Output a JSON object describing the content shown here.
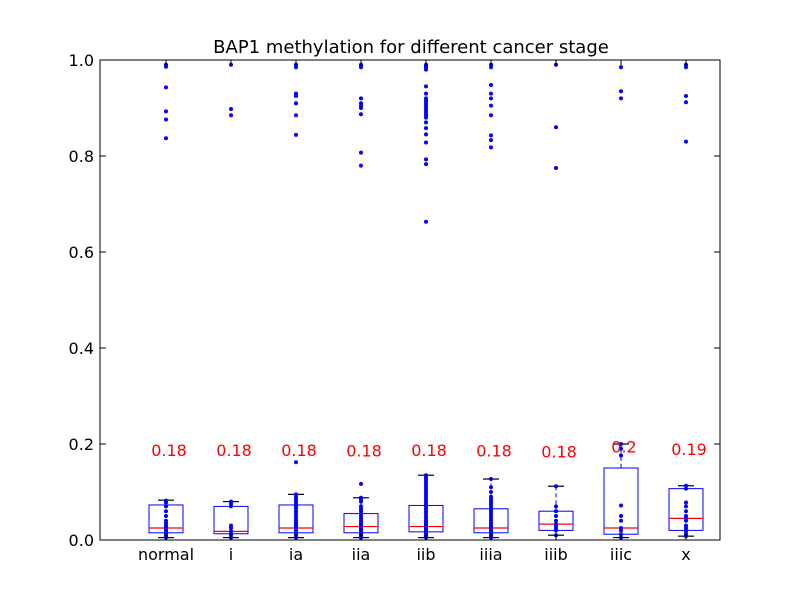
{
  "chart_data": {
    "type": "box",
    "title": "BAP1 methylation for different cancer stage",
    "xlabel": "",
    "ylabel": "",
    "ylim": [
      0.0,
      1.0
    ],
    "yticks": [
      0.0,
      0.2,
      0.4,
      0.6,
      0.8,
      1.0
    ],
    "ytick_labels": [
      "0.0",
      "0.2",
      "0.4",
      "0.6",
      "0.8",
      "1.0"
    ],
    "grid": false,
    "colors": {
      "box": "#0000ff",
      "median": "#ff0000",
      "points": "#0000ff",
      "annotation": "#ff0000",
      "whisker_cap": "#000000"
    },
    "categories": [
      "normal",
      "i",
      "ia",
      "iia",
      "iib",
      "iiia",
      "iiib",
      "iiic",
      "x"
    ],
    "groups": [
      {
        "label": "normal",
        "annotation": "0.18",
        "annotation_y": 0.187,
        "whisker_low": 0.005,
        "q1": 0.015,
        "median": 0.025,
        "q3": 0.073,
        "whisker_high": 0.083,
        "points": [
          0.005,
          0.008,
          0.01,
          0.012,
          0.015,
          0.018,
          0.02,
          0.022,
          0.025,
          0.027,
          0.03,
          0.035,
          0.04,
          0.05,
          0.06,
          0.07,
          0.078,
          0.082,
          0.837,
          0.876,
          0.893,
          0.943,
          0.986,
          0.99
        ]
      },
      {
        "label": "i",
        "annotation": "0.18",
        "annotation_y": 0.187,
        "whisker_low": 0.005,
        "q1": 0.013,
        "median": 0.018,
        "q3": 0.07,
        "whisker_high": 0.08,
        "points": [
          0.005,
          0.01,
          0.013,
          0.018,
          0.025,
          0.03,
          0.07,
          0.075,
          0.08,
          0.885,
          0.898,
          0.99
        ]
      },
      {
        "label": "ia",
        "annotation": "0.18",
        "annotation_y": 0.188,
        "whisker_low": 0.005,
        "q1": 0.015,
        "median": 0.025,
        "q3": 0.073,
        "whisker_high": 0.095,
        "points": [
          0.005,
          0.008,
          0.01,
          0.012,
          0.015,
          0.018,
          0.02,
          0.022,
          0.025,
          0.028,
          0.03,
          0.033,
          0.036,
          0.04,
          0.045,
          0.05,
          0.055,
          0.06,
          0.065,
          0.07,
          0.075,
          0.08,
          0.085,
          0.09,
          0.095,
          0.162,
          0.844,
          0.885,
          0.91,
          0.925,
          0.93,
          0.985,
          0.99
        ]
      },
      {
        "label": "iia",
        "annotation": "0.18",
        "annotation_y": 0.186,
        "whisker_low": 0.005,
        "q1": 0.015,
        "median": 0.028,
        "q3": 0.055,
        "whisker_high": 0.088,
        "points": [
          0.005,
          0.008,
          0.01,
          0.012,
          0.015,
          0.018,
          0.02,
          0.022,
          0.025,
          0.028,
          0.03,
          0.032,
          0.035,
          0.04,
          0.045,
          0.05,
          0.055,
          0.06,
          0.065,
          0.07,
          0.08,
          0.085,
          0.088,
          0.117,
          0.78,
          0.807,
          0.887,
          0.9,
          0.905,
          0.91,
          0.92,
          0.985,
          0.988,
          0.99
        ]
      },
      {
        "label": "iib",
        "annotation": "0.18",
        "annotation_y": 0.187,
        "whisker_low": 0.005,
        "q1": 0.017,
        "median": 0.028,
        "q3": 0.072,
        "whisker_high": 0.135,
        "points": [
          0.005,
          0.008,
          0.01,
          0.012,
          0.014,
          0.016,
          0.018,
          0.02,
          0.022,
          0.024,
          0.026,
          0.028,
          0.03,
          0.033,
          0.036,
          0.04,
          0.045,
          0.05,
          0.055,
          0.06,
          0.065,
          0.07,
          0.075,
          0.08,
          0.085,
          0.09,
          0.095,
          0.1,
          0.105,
          0.11,
          0.115,
          0.12,
          0.125,
          0.13,
          0.135,
          0.663,
          0.783,
          0.793,
          0.828,
          0.845,
          0.858,
          0.87,
          0.88,
          0.885,
          0.89,
          0.895,
          0.9,
          0.905,
          0.91,
          0.915,
          0.92,
          0.93,
          0.945,
          0.98,
          0.985,
          0.988,
          0.99
        ]
      },
      {
        "label": "iiia",
        "annotation": "0.18",
        "annotation_y": 0.186,
        "whisker_low": 0.005,
        "q1": 0.015,
        "median": 0.025,
        "q3": 0.065,
        "whisker_high": 0.127,
        "points": [
          0.005,
          0.008,
          0.01,
          0.012,
          0.015,
          0.018,
          0.02,
          0.022,
          0.025,
          0.028,
          0.03,
          0.035,
          0.04,
          0.045,
          0.05,
          0.055,
          0.06,
          0.065,
          0.07,
          0.075,
          0.08,
          0.085,
          0.09,
          0.1,
          0.11,
          0.127,
          0.818,
          0.833,
          0.843,
          0.885,
          0.905,
          0.92,
          0.93,
          0.948,
          0.985,
          0.99
        ]
      },
      {
        "label": "iiib",
        "annotation": "0.18",
        "annotation_y": 0.184,
        "whisker_low": 0.01,
        "q1": 0.02,
        "median": 0.033,
        "q3": 0.06,
        "whisker_high": 0.112,
        "points": [
          0.01,
          0.02,
          0.025,
          0.03,
          0.033,
          0.04,
          0.05,
          0.06,
          0.07,
          0.112,
          0.775,
          0.86,
          0.99
        ]
      },
      {
        "label": "iiic",
        "annotation": "0.2",
        "annotation_y": 0.195,
        "whisker_low": 0.005,
        "q1": 0.012,
        "median": 0.025,
        "q3": 0.15,
        "whisker_high": 0.2,
        "points": [
          0.005,
          0.012,
          0.02,
          0.025,
          0.04,
          0.05,
          0.072,
          0.176,
          0.19,
          0.2,
          0.92,
          0.935,
          0.985
        ]
      },
      {
        "label": "x",
        "annotation": "0.19",
        "annotation_y": 0.19,
        "whisker_low": 0.008,
        "q1": 0.02,
        "median": 0.045,
        "q3": 0.107,
        "whisker_high": 0.113,
        "points": [
          0.008,
          0.012,
          0.018,
          0.02,
          0.025,
          0.03,
          0.04,
          0.045,
          0.05,
          0.06,
          0.07,
          0.078,
          0.107,
          0.113,
          0.83,
          0.912,
          0.925,
          0.985,
          0.99
        ]
      }
    ]
  }
}
